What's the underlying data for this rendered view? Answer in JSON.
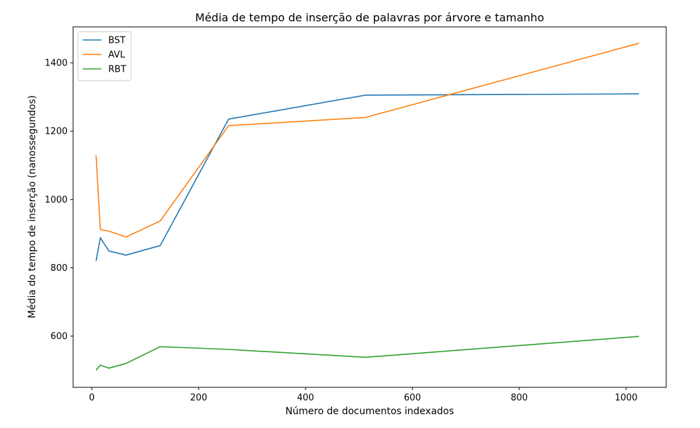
{
  "chart_data": {
    "type": "line",
    "title": "Média de tempo de inserção de palavras por árvore e tamanho",
    "xlabel": "Número de documentos indexados",
    "ylabel": "Média do tempo de inserção (nanossegundos)",
    "xlim": [
      -35,
      1075
    ],
    "ylim": [
      450,
      1505
    ],
    "xticks": [
      0,
      200,
      400,
      600,
      800,
      1000
    ],
    "yticks": [
      600,
      800,
      1000,
      1200,
      1400
    ],
    "legend_position": "top-left",
    "grid": false,
    "series": [
      {
        "name": "BST",
        "color": "#1f77b4",
        "x": [
          8,
          16,
          32,
          64,
          128,
          256,
          512,
          1024
        ],
        "y": [
          820,
          888,
          849,
          837,
          865,
          1235,
          1305,
          1309
        ]
      },
      {
        "name": "AVL",
        "color": "#ff7f0e",
        "x": [
          8,
          16,
          32,
          64,
          128,
          256,
          512,
          1024
        ],
        "y": [
          1129,
          912,
          907,
          890,
          937,
          1216,
          1240,
          1457
        ]
      },
      {
        "name": "RBT",
        "color": "#2ca02c",
        "x": [
          8,
          16,
          32,
          64,
          128,
          256,
          512,
          1024
        ],
        "y": [
          500,
          515,
          506,
          520,
          569,
          561,
          538,
          599
        ]
      }
    ]
  }
}
